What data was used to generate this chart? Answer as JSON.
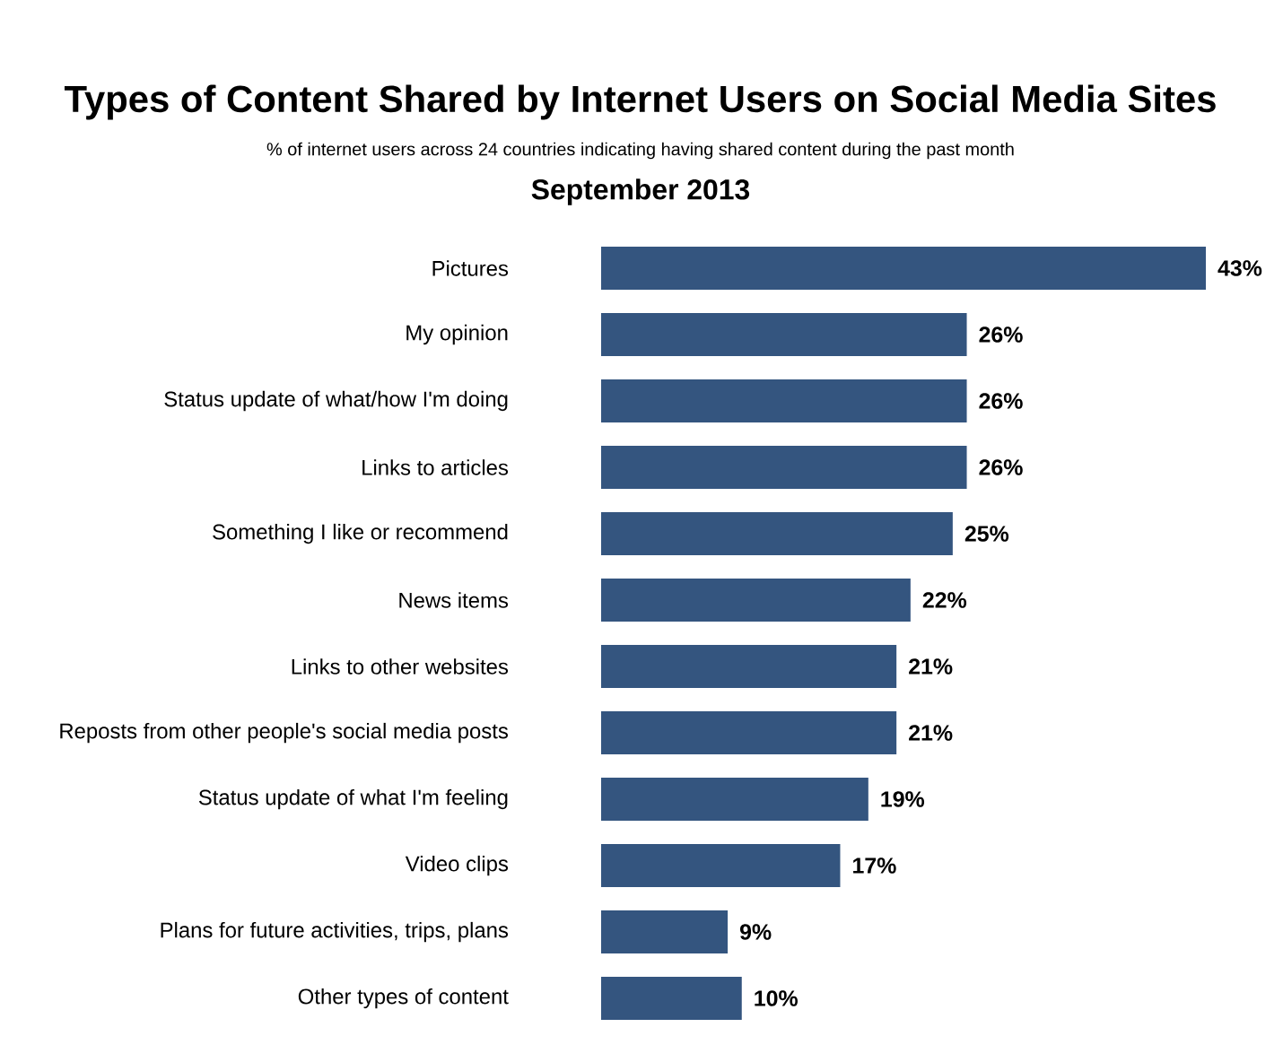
{
  "chart_data": {
    "type": "bar",
    "orientation": "horizontal",
    "title": "Types of Content Shared by Internet Users on Social Media Sites",
    "subtitle": "% of internet users across 24 countries indicating having shared content during the past month",
    "annotations": [
      "September 2013"
    ],
    "categories": [
      "Pictures",
      "My opinion",
      "Status update of what/how I'm doing",
      "Links to articles",
      "Something I like or recommend",
      "News items",
      "Links to other websites",
      "Reposts from other people's social media posts",
      "Status update of what I'm feeling",
      "Video clips",
      "Plans for future activities, trips, plans",
      "Other types of content"
    ],
    "values": [
      43,
      26,
      26,
      26,
      25,
      22,
      21,
      21,
      19,
      17,
      9,
      10
    ],
    "value_labels": [
      "43%",
      "26%",
      "26%",
      "26%",
      "25%",
      "22%",
      "21%",
      "21%",
      "19%",
      "17%",
      "9%",
      "10%"
    ],
    "color": "#34557f"
  }
}
